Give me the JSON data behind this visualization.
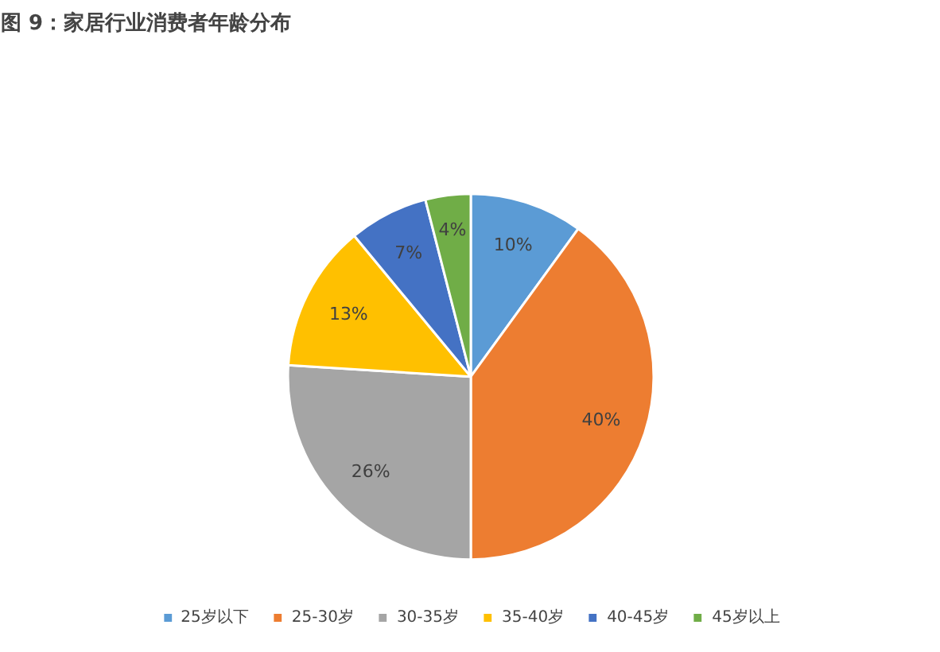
{
  "chart_data": {
    "type": "pie",
    "title": "图 9：家居行业消费者年龄分布",
    "categories": [
      "25岁以下",
      "25-30岁",
      "30-35岁",
      "35-40岁",
      "40-45岁",
      "45岁以上"
    ],
    "values": [
      10,
      40,
      26,
      13,
      7,
      4
    ],
    "colors": [
      "#5b9bd5",
      "#ed7d31",
      "#a5a5a5",
      "#ffc000",
      "#4472c4",
      "#70ad47"
    ],
    "value_labels": [
      "10%",
      "40%",
      "26%",
      "13%",
      "7%",
      "4%"
    ],
    "legend": "bottom"
  }
}
